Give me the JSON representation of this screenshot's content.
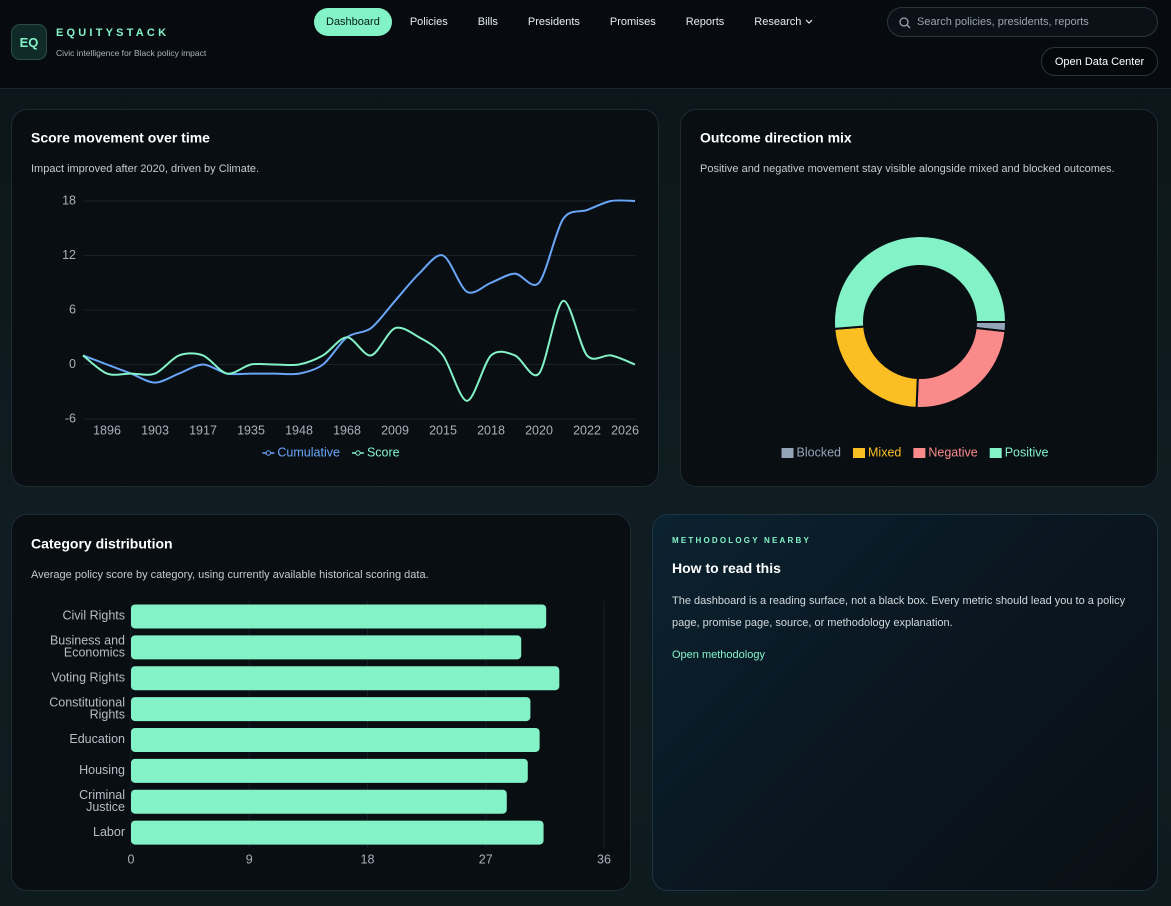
{
  "header": {
    "logo": "EQ",
    "brand": "EQUITYSTACK",
    "tagline": "Civic intelligence for Black policy impact"
  },
  "nav": {
    "items": [
      "Dashboard",
      "Policies",
      "Bills",
      "Presidents",
      "Promises",
      "Reports",
      "Research"
    ],
    "active": "Dashboard"
  },
  "search": {
    "placeholder": "Search policies, presidents, reports"
  },
  "actions": {
    "open_data_center": "Open Data Center"
  },
  "chart_data": [
    {
      "type": "line",
      "title": "Score movement over time",
      "subtitle": "Impact improved after 2020, driven by Climate.",
      "categories": [
        null,
        "1896",
        null,
        "1903",
        null,
        "1917",
        null,
        "1935",
        null,
        "1948",
        null,
        "1968",
        null,
        "2009",
        null,
        "2015",
        null,
        "2018",
        null,
        "2020",
        null,
        "2022",
        null,
        "2026"
      ],
      "series": [
        {
          "name": "Cumulative",
          "color": "#6aa6f8",
          "values": [
            1,
            0,
            -1,
            -2,
            -1,
            0,
            -1,
            -1,
            -1,
            -1,
            0,
            3,
            4,
            7,
            10,
            12,
            8,
            9,
            10,
            9,
            16,
            17,
            18,
            18
          ]
        },
        {
          "name": "Score",
          "color": "#84f2c7",
          "values": [
            1,
            -1,
            -1,
            -1,
            1,
            1,
            -1,
            0,
            0,
            0,
            1,
            3,
            1,
            4,
            3,
            1,
            -4,
            1,
            1,
            -1,
            7,
            1,
            1,
            0
          ]
        }
      ],
      "ylim": [
        -6,
        18
      ],
      "yticks": [
        -6,
        0,
        6,
        12,
        18
      ],
      "grid": true,
      "legend": "bottom"
    },
    {
      "type": "doughnut",
      "title": "Outcome direction mix",
      "subtitle": "Positive and negative movement stay visible alongside mixed and blocked outcomes.",
      "categories": [
        "Blocked",
        "Mixed",
        "Negative",
        "Positive"
      ],
      "values": [
        2,
        27,
        28,
        60
      ],
      "colors": [
        "#94a3b8",
        "#fbbf24",
        "#fb8a8a",
        "#84f2c7"
      ],
      "legend": "bottom"
    },
    {
      "type": "bar",
      "orientation": "horizontal",
      "title": "Category distribution",
      "subtitle": "Average policy score by category, using currently available historical scoring data.",
      "categories": [
        [
          "Civil Rights"
        ],
        [
          "Business and",
          "Economics"
        ],
        [
          "Voting Rights"
        ],
        [
          "Constitutional",
          "Rights"
        ],
        [
          "Education"
        ],
        [
          "Housing"
        ],
        [
          "Criminal",
          "Justice"
        ],
        [
          "Labor"
        ]
      ],
      "values": [
        31.6,
        29.7,
        32.6,
        30.4,
        31.1,
        30.2,
        28.6,
        31.4
      ],
      "color": "#84f2c7",
      "xlim": [
        0,
        36
      ],
      "xticks": [
        0,
        9,
        18,
        27,
        36
      ],
      "grid": true
    }
  ],
  "methodology": {
    "eyebrow": "METHODOLOGY NEARBY",
    "title": "How to read this",
    "body": "The dashboard is a reading surface, not a black box. Every metric should lead you to a policy page, promise page, source, or methodology explanation.",
    "link": "Open methodology"
  }
}
